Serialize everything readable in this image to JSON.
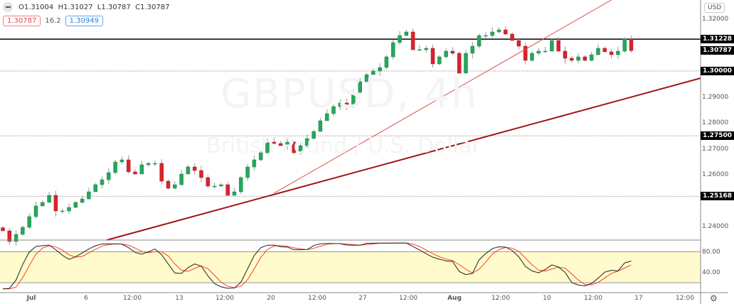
{
  "header": {
    "ohlc": "O1.31004  H1.31027  L1.30787  C1.30787",
    "bid": "1.30787",
    "spread": "16.2",
    "ask": "1.30949",
    "collapse_icon": "minus-circle-icon"
  },
  "watermark": {
    "symbol": "GBPUSD, 4h",
    "description": "British Pound / U.S. Dollar"
  },
  "price_axis": {
    "currency": "USD",
    "ticks": [
      "1.32000",
      "1.29000",
      "1.28000",
      "1.27000",
      "1.26000",
      "1.24000"
    ],
    "tick_values": [
      1.32,
      1.29,
      1.28,
      1.27,
      1.26,
      1.24
    ],
    "tags": [
      {
        "label": "1.31228",
        "value": 1.31228
      },
      {
        "label": "1.30787",
        "value": 1.30787
      },
      {
        "label": "1.30000",
        "value": 1.3
      },
      {
        "label": "1.27500",
        "value": 1.275
      },
      {
        "label": "1.25168",
        "value": 1.25168
      }
    ]
  },
  "stoch_axis": {
    "ticks": [
      "80.00",
      "40.00"
    ],
    "band": [
      20,
      80
    ]
  },
  "time_axis": [
    {
      "label": "Jul",
      "bold": true
    },
    {
      "label": "6"
    },
    {
      "label": "12:00"
    },
    {
      "label": "13"
    },
    {
      "label": "12:00"
    },
    {
      "label": "20"
    },
    {
      "label": "12:00"
    },
    {
      "label": "27"
    },
    {
      "label": "12:00"
    },
    {
      "label": "Aug",
      "bold": true
    },
    {
      "label": "12:00"
    },
    {
      "label": "10"
    },
    {
      "label": "12:00"
    },
    {
      "label": "17"
    },
    {
      "label": "12:00"
    }
  ],
  "settings_icon": "gear-icon",
  "chart_data": {
    "type": "candlestick",
    "symbol": "GBPUSD",
    "timeframe": "4h",
    "ylim": [
      1.2325,
      1.3274
    ],
    "closes": [
      1.23836,
      1.23425,
      1.23699,
      1.23973,
      1.24384,
      1.24795,
      1.24932,
      1.25205,
      1.24603,
      1.24603,
      1.2474,
      1.24932,
      1.25068,
      1.25342,
      1.25616,
      1.25808,
      1.26082,
      1.26493,
      1.26575,
      1.2611,
      1.26027,
      1.26384,
      1.26438,
      1.26438,
      1.25753,
      1.25479,
      1.25616,
      1.26027,
      1.26301,
      1.26164,
      1.2589,
      1.25562,
      1.25562,
      1.25616,
      1.25205,
      1.25342,
      1.2589,
      1.26301,
      1.26575,
      1.26849,
      1.2726,
      1.27205,
      1.27123,
      1.2726,
      1.26849,
      1.27123,
      1.27397,
      1.27671,
      1.28082,
      1.28356,
      1.2863,
      1.28767,
      1.2863,
      1.29178,
      1.29589,
      1.29863,
      1.3,
      1.30137,
      1.30548,
      1.31096,
      1.3137,
      1.31507,
      1.30822,
      1.30822,
      1.30877,
      1.30274,
      1.30548,
      1.30767,
      1.30685,
      1.29918,
      1.30685,
      1.30959,
      1.3137,
      1.3137,
      1.31507,
      1.31589,
      1.31425,
      1.31178,
      1.30959,
      1.30411,
      1.30685,
      1.30767,
      1.30767,
      1.31178,
      1.30767,
      1.30493,
      1.30411,
      1.30548,
      1.30411,
      1.3063,
      1.30877,
      1.3074,
      1.3063,
      1.30767,
      1.31233,
      1.30787
    ],
    "horizontal_lines": [
      {
        "value": 1.31228,
        "style": "solid",
        "color": "#000000"
      },
      {
        "value": 1.3,
        "style": "dotted",
        "color": "#999999"
      },
      {
        "value": 1.275,
        "style": "dotted",
        "color": "#999999"
      },
      {
        "value": 1.25168,
        "style": "dotted",
        "color": "#999999"
      }
    ],
    "trendlines": [
      {
        "from": {
          "bar": 15.7,
          "price": 1.2348
        },
        "to": {
          "bar": 105.5,
          "price": 1.29726
        },
        "color": "#a31515",
        "width": 2
      },
      {
        "from": {
          "bar": 41,
          "price": 1.25288
        },
        "to": {
          "bar": 92,
          "price": 1.3274
        },
        "color": "#d9534f",
        "width": 1
      }
    ],
    "colors": {
      "up": "#26a65b",
      "down": "#d9232d",
      "k": "#222222",
      "d": "#ff3d1f",
      "band": "#fffbcc"
    },
    "indicator": {
      "name": "stochastic",
      "k_period": 14,
      "smooth": 3,
      "levels": [
        80,
        40
      ]
    }
  }
}
